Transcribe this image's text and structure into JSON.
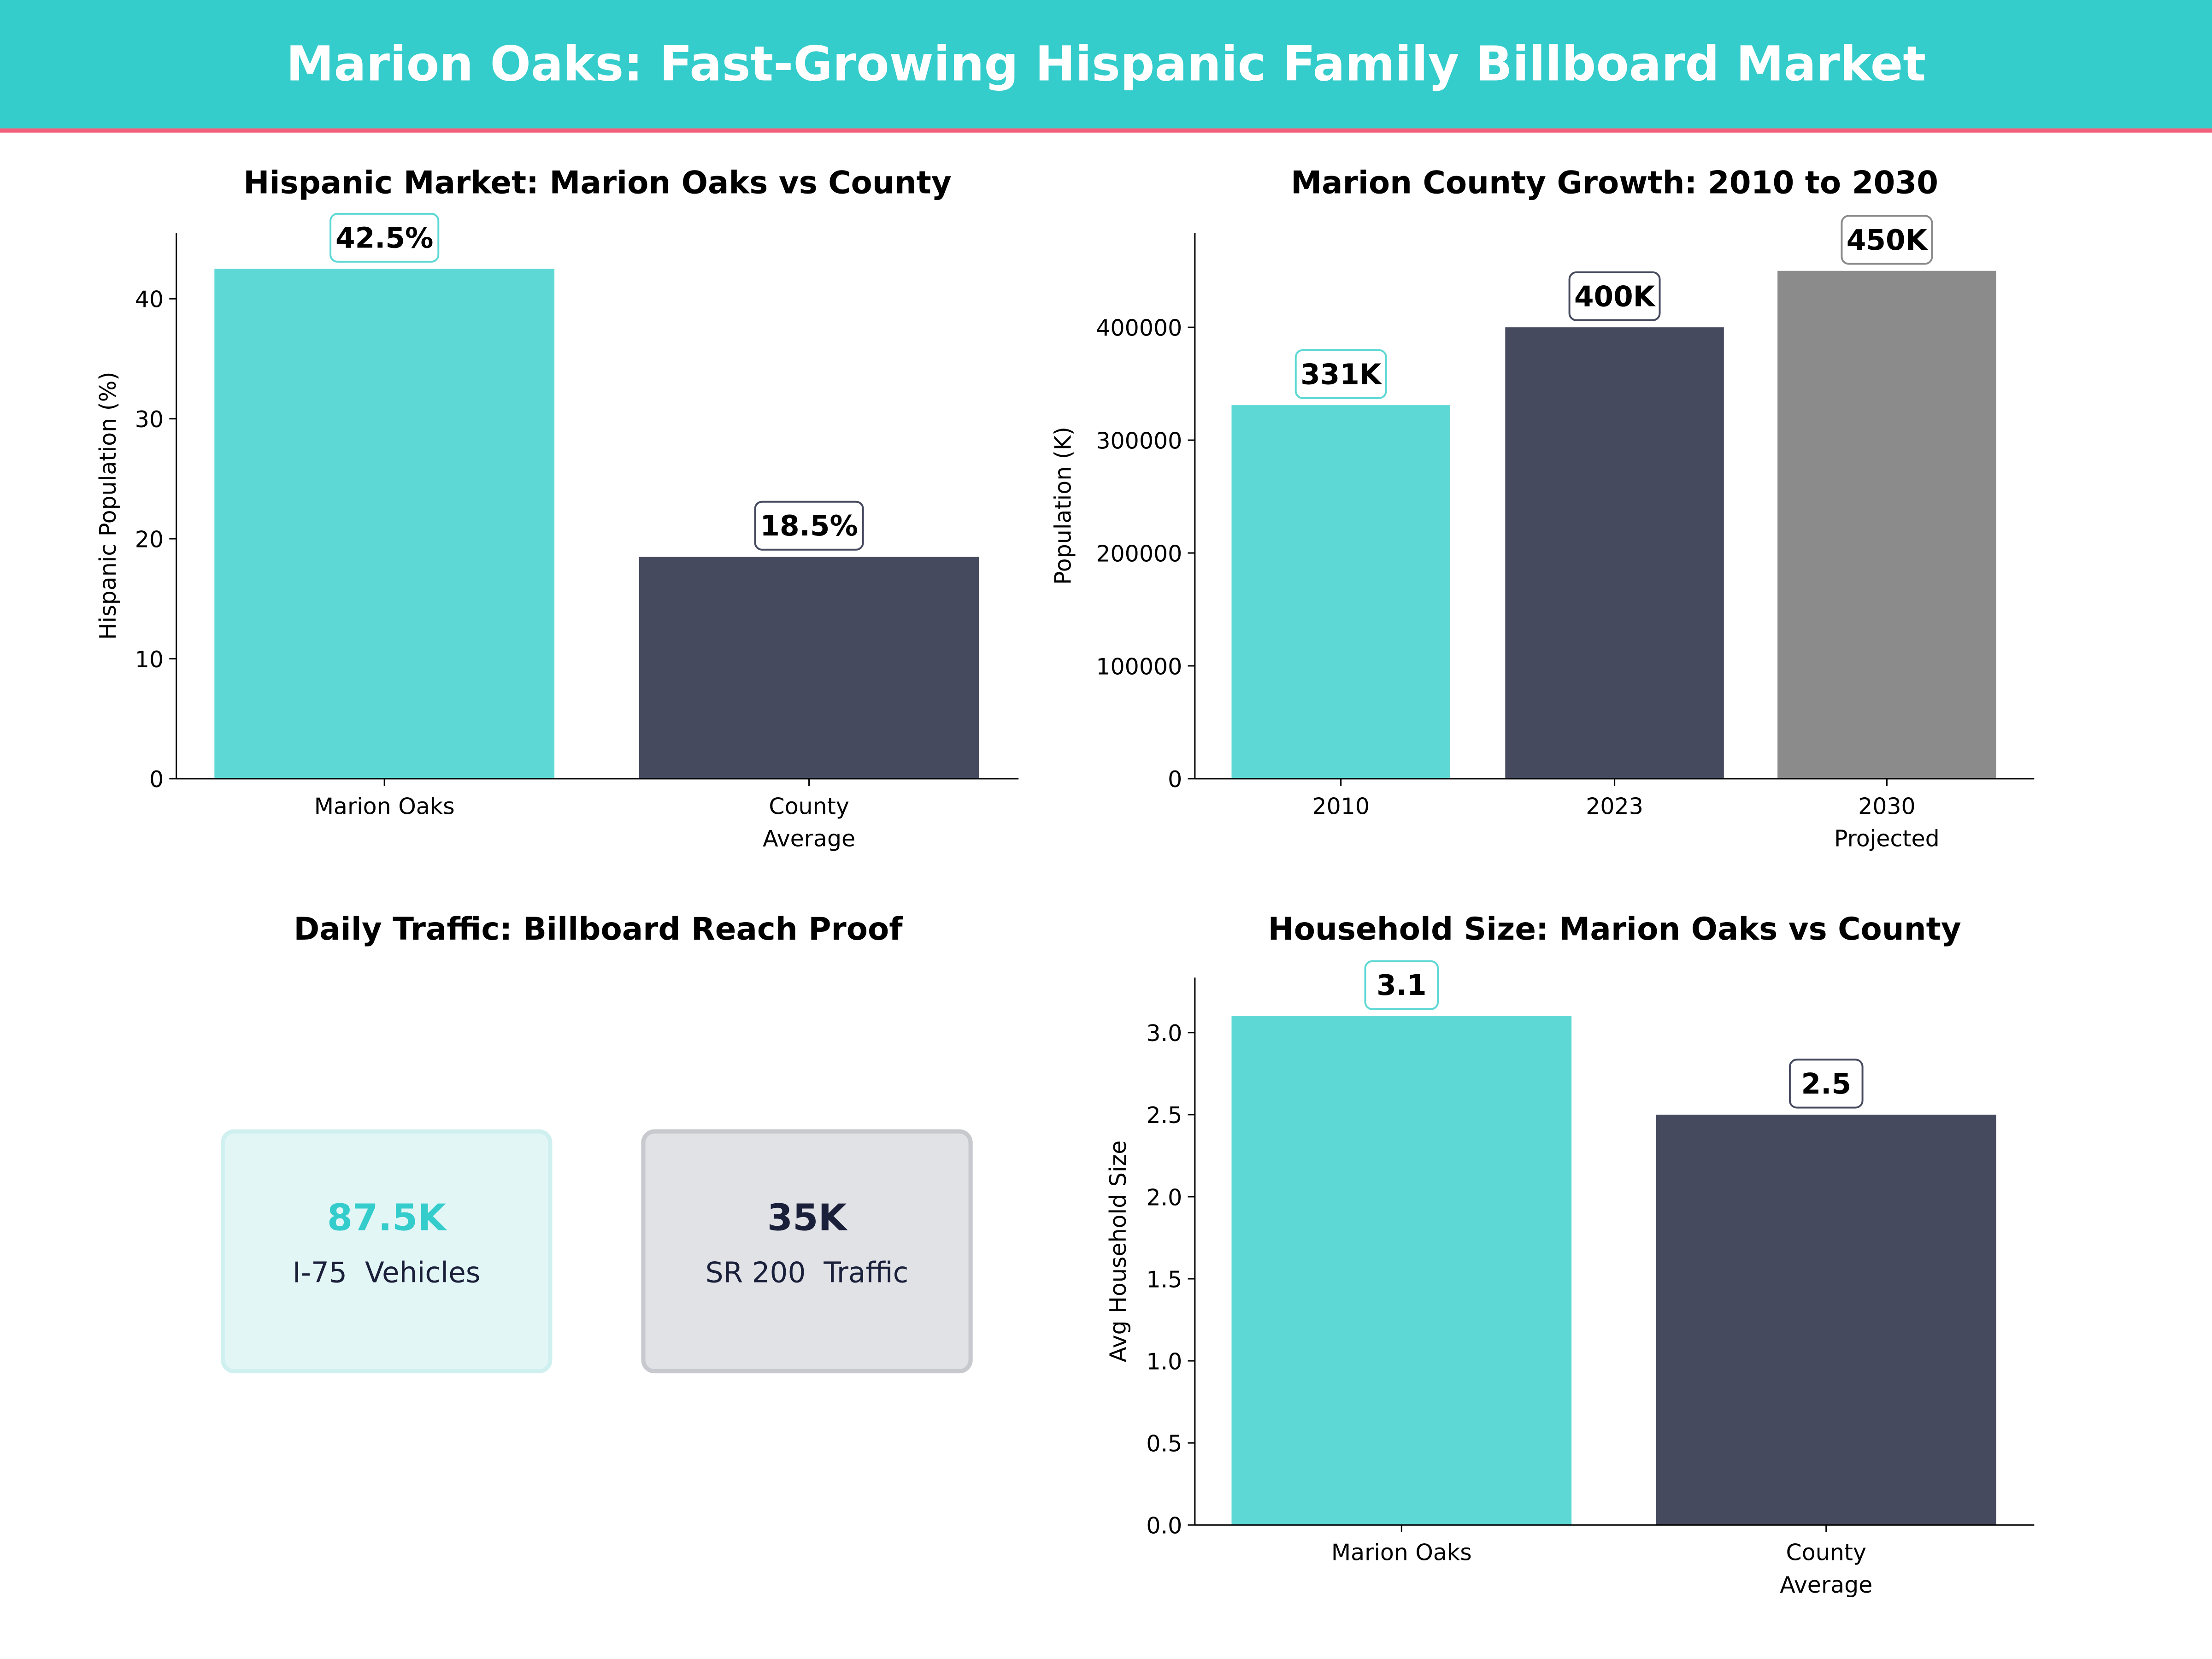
{
  "header": {
    "title": "Marion Oaks: Fast-Growing Hispanic Family Billboard Market",
    "band_color": "#35CCCC",
    "accent_line_color": "#F0607A"
  },
  "colors": {
    "teal": "#5DD8D5",
    "dark": "#464A5F",
    "gray": "#8B8B8B",
    "teal_text": "#35CCCC",
    "navy_text": "#1A1F3A"
  },
  "chart_data": [
    {
      "type": "bar",
      "title": "Hispanic Market: Marion Oaks vs County",
      "ylabel": "Hispanic Population (%)",
      "xlabel": "",
      "categories": [
        "Marion Oaks",
        "County\nAverage"
      ],
      "values": [
        42.5,
        18.5
      ],
      "data_labels": [
        "42.5%",
        "18.5%"
      ],
      "bar_colors": [
        "#5DD8D5",
        "#464A5F"
      ],
      "label_border_colors": [
        "#5DD8D5",
        "#464A5F"
      ],
      "yticks": [
        0,
        10,
        20,
        30,
        40
      ],
      "ytick_labels": [
        "0",
        "10",
        "20",
        "30",
        "40"
      ],
      "ylim": [
        0,
        45.5
      ],
      "grid": false
    },
    {
      "type": "bar",
      "title": "Marion County Growth: 2010 to 2030",
      "ylabel": "Population (K)",
      "xlabel": "",
      "categories": [
        "2010",
        "2023",
        "2030\nProjected"
      ],
      "values": [
        331000,
        400000,
        450000
      ],
      "data_labels": [
        "331K",
        "400K",
        "450K"
      ],
      "bar_colors": [
        "#5DD8D5",
        "#464A5F",
        "#8B8B8B"
      ],
      "label_border_colors": [
        "#5DD8D5",
        "#464A5F",
        "#8B8B8B"
      ],
      "yticks": [
        0,
        100000,
        200000,
        300000,
        400000
      ],
      "ytick_labels": [
        "0",
        "100000",
        "200000",
        "300000",
        "400000"
      ],
      "ylim": [
        0,
        483750
      ],
      "grid": false
    },
    {
      "type": "table",
      "title": "Daily Traffic: Billboard Reach Proof",
      "cards": [
        {
          "value": "87.5K",
          "label": "I-75  Vehicles",
          "fill": "#E3F6F6",
          "border": "#D0F0F0",
          "value_color": "#35CCCC"
        },
        {
          "value": "35K",
          "label": "SR 200  Traffic",
          "fill": "#E1E2E6",
          "border": "#C8C9CE",
          "value_color": "#1A1F3A"
        }
      ]
    },
    {
      "type": "bar",
      "title": "Household Size: Marion Oaks vs County",
      "ylabel": "Avg Household Size",
      "xlabel": "",
      "categories": [
        "Marion Oaks",
        "County\nAverage"
      ],
      "values": [
        3.1,
        2.5
      ],
      "data_labels": [
        "3.1",
        "2.5"
      ],
      "bar_colors": [
        "#5DD8D5",
        "#464A5F"
      ],
      "label_border_colors": [
        "#5DD8D5",
        "#464A5F"
      ],
      "yticks": [
        0,
        0.5,
        1.0,
        1.5,
        2.0,
        2.5,
        3.0
      ],
      "ytick_labels": [
        "0.0",
        "0.5",
        "1.0",
        "1.5",
        "2.0",
        "2.5",
        "3.0"
      ],
      "ylim": [
        0,
        3.335
      ],
      "grid": false
    }
  ]
}
